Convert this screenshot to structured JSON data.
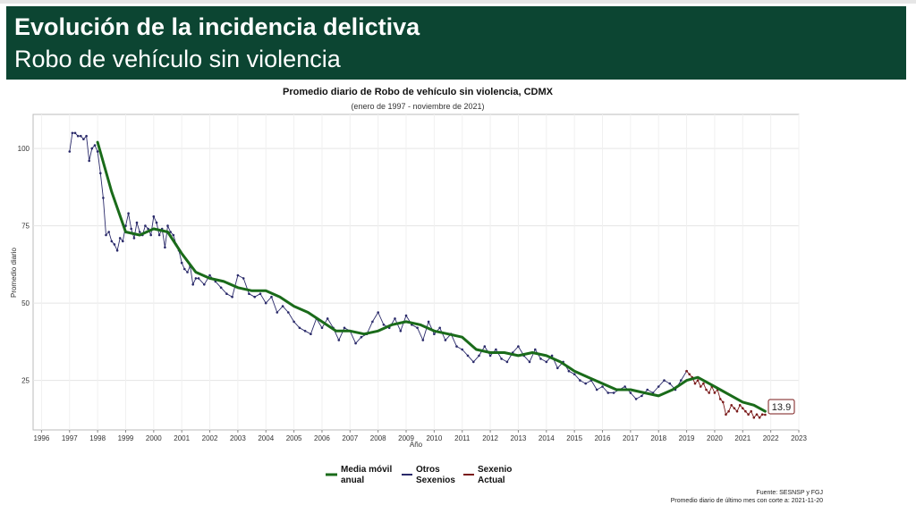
{
  "header": {
    "title": "Evolución de la incidencia delictiva",
    "subtitle": "Robo de vehículo sin violencia"
  },
  "chart_data": {
    "type": "line",
    "title": "Promedio diario de Robo de vehículo sin violencia, CDMX",
    "subtitle": "(enero de 1997 - noviembre de 2021)",
    "xlabel": "Año",
    "ylabel": "Promedio diario",
    "xlim": [
      1995.7,
      2023.0
    ],
    "ylim": [
      9,
      111
    ],
    "x_ticks": [
      1996,
      1997,
      1998,
      1999,
      2000,
      2001,
      2002,
      2003,
      2004,
      2005,
      2006,
      2007,
      2008,
      2009,
      2010,
      2011,
      2012,
      2013,
      2014,
      2015,
      2016,
      2017,
      2018,
      2019,
      2020,
      2021,
      2022,
      2023
    ],
    "x_tick_labels": [
      "1996",
      "1997",
      "1998",
      "1999",
      "2000",
      "2001",
      "2002",
      "2003",
      "2004",
      "2005",
      "2006",
      "2007",
      "2008",
      "2009",
      "2010",
      "2011",
      "2012",
      "2013",
      "2014",
      "2015",
      "2016",
      "2017",
      "2018",
      "2019",
      "2020",
      "2021",
      "2022",
      "2023"
    ],
    "y_ticks": [
      25,
      50,
      75,
      100
    ],
    "y_tick_labels": [
      "25",
      "50",
      "75",
      "100"
    ],
    "grid": true,
    "legend_position": "bottom",
    "legend": [
      {
        "label": "Media móvil anual",
        "color": "#1a6b1a"
      },
      {
        "label": "Otros Sexenios",
        "color": "#2a2a6a"
      },
      {
        "label": "Sexenio Actual",
        "color": "#7a1a1a"
      }
    ],
    "last_value_label": "13.9",
    "series": [
      {
        "name": "Media móvil anual",
        "color": "#1a6b1a",
        "points": [
          [
            1998.0,
            102
          ],
          [
            1998.5,
            86
          ],
          [
            1999.0,
            73
          ],
          [
            1999.5,
            72
          ],
          [
            2000.0,
            74
          ],
          [
            2000.5,
            73
          ],
          [
            2001.0,
            66
          ],
          [
            2001.5,
            60
          ],
          [
            2002.0,
            58
          ],
          [
            2002.5,
            57
          ],
          [
            2003.0,
            55
          ],
          [
            2003.5,
            54
          ],
          [
            2004.0,
            54
          ],
          [
            2004.5,
            52
          ],
          [
            2005.0,
            49
          ],
          [
            2005.5,
            47
          ],
          [
            2006.0,
            44
          ],
          [
            2006.5,
            41
          ],
          [
            2007.0,
            41
          ],
          [
            2007.5,
            40
          ],
          [
            2008.0,
            41
          ],
          [
            2008.5,
            43
          ],
          [
            2009.0,
            44
          ],
          [
            2009.5,
            43
          ],
          [
            2010.0,
            41
          ],
          [
            2010.5,
            40
          ],
          [
            2011.0,
            39
          ],
          [
            2011.5,
            35
          ],
          [
            2012.0,
            34
          ],
          [
            2012.5,
            34
          ],
          [
            2013.0,
            33
          ],
          [
            2013.5,
            34
          ],
          [
            2014.0,
            33
          ],
          [
            2014.5,
            31
          ],
          [
            2015.0,
            28
          ],
          [
            2015.5,
            26
          ],
          [
            2016.0,
            24
          ],
          [
            2016.5,
            22
          ],
          [
            2017.0,
            22
          ],
          [
            2017.5,
            21
          ],
          [
            2018.0,
            20
          ],
          [
            2018.5,
            22
          ],
          [
            2019.0,
            25
          ],
          [
            2019.4,
            26
          ],
          [
            2019.8,
            24
          ],
          [
            2020.2,
            22
          ],
          [
            2020.6,
            20
          ],
          [
            2021.0,
            18
          ],
          [
            2021.4,
            17
          ],
          [
            2021.8,
            15
          ]
        ]
      },
      {
        "name": "Otros Sexenios",
        "color": "#2a2a6a",
        "points": [
          [
            1997.0,
            99
          ],
          [
            1997.1,
            105
          ],
          [
            1997.2,
            105
          ],
          [
            1997.3,
            104
          ],
          [
            1997.4,
            104
          ],
          [
            1997.5,
            103
          ],
          [
            1997.6,
            104
          ],
          [
            1997.7,
            96
          ],
          [
            1997.8,
            100
          ],
          [
            1997.9,
            101
          ],
          [
            1998.0,
            99
          ],
          [
            1998.1,
            92
          ],
          [
            1998.2,
            84
          ],
          [
            1998.3,
            72
          ],
          [
            1998.4,
            73
          ],
          [
            1998.5,
            70
          ],
          [
            1998.6,
            69
          ],
          [
            1998.7,
            67
          ],
          [
            1998.8,
            71
          ],
          [
            1998.9,
            70
          ],
          [
            1999.0,
            75
          ],
          [
            1999.1,
            79
          ],
          [
            1999.2,
            74
          ],
          [
            1999.3,
            71
          ],
          [
            1999.4,
            76
          ],
          [
            1999.5,
            73
          ],
          [
            1999.6,
            72
          ],
          [
            1999.7,
            75
          ],
          [
            1999.8,
            74
          ],
          [
            1999.9,
            72
          ],
          [
            2000.0,
            78
          ],
          [
            2000.1,
            76
          ],
          [
            2000.2,
            72
          ],
          [
            2000.3,
            74
          ],
          [
            2000.4,
            68
          ],
          [
            2000.5,
            75
          ],
          [
            2000.6,
            73
          ],
          [
            2000.7,
            72
          ],
          [
            2000.8,
            69
          ],
          [
            2000.9,
            67
          ],
          [
            2001.0,
            63
          ],
          [
            2001.1,
            61
          ],
          [
            2001.2,
            60
          ],
          [
            2001.3,
            62
          ],
          [
            2001.4,
            56
          ],
          [
            2001.5,
            58
          ],
          [
            2001.6,
            58
          ],
          [
            2001.8,
            56
          ],
          [
            2002.0,
            59
          ],
          [
            2002.2,
            57
          ],
          [
            2002.4,
            55
          ],
          [
            2002.6,
            53
          ],
          [
            2002.8,
            52
          ],
          [
            2003.0,
            59
          ],
          [
            2003.2,
            58
          ],
          [
            2003.4,
            53
          ],
          [
            2003.6,
            52
          ],
          [
            2003.8,
            53
          ],
          [
            2004.0,
            50
          ],
          [
            2004.2,
            52
          ],
          [
            2004.4,
            47
          ],
          [
            2004.6,
            49
          ],
          [
            2004.8,
            47
          ],
          [
            2005.0,
            44
          ],
          [
            2005.2,
            42
          ],
          [
            2005.4,
            41
          ],
          [
            2005.6,
            40
          ],
          [
            2005.8,
            45
          ],
          [
            2006.0,
            42
          ],
          [
            2006.2,
            45
          ],
          [
            2006.4,
            42
          ],
          [
            2006.6,
            38
          ],
          [
            2006.8,
            42
          ],
          [
            2007.0,
            41
          ],
          [
            2007.2,
            37
          ],
          [
            2007.4,
            39
          ],
          [
            2007.6,
            40
          ],
          [
            2007.8,
            44
          ],
          [
            2008.0,
            47
          ],
          [
            2008.2,
            43
          ],
          [
            2008.4,
            42
          ],
          [
            2008.6,
            45
          ],
          [
            2008.8,
            41
          ],
          [
            2009.0,
            46
          ],
          [
            2009.2,
            43
          ],
          [
            2009.4,
            42
          ],
          [
            2009.6,
            38
          ],
          [
            2009.8,
            44
          ],
          [
            2010.0,
            40
          ],
          [
            2010.2,
            42
          ],
          [
            2010.4,
            38
          ],
          [
            2010.6,
            40
          ],
          [
            2010.8,
            36
          ],
          [
            2011.0,
            35
          ],
          [
            2011.2,
            33
          ],
          [
            2011.4,
            31
          ],
          [
            2011.6,
            33
          ],
          [
            2011.8,
            36
          ],
          [
            2012.0,
            33
          ],
          [
            2012.2,
            35
          ],
          [
            2012.4,
            32
          ],
          [
            2012.6,
            31
          ],
          [
            2012.8,
            34
          ],
          [
            2013.0,
            36
          ],
          [
            2013.2,
            33
          ],
          [
            2013.4,
            31
          ],
          [
            2013.6,
            35
          ],
          [
            2013.8,
            32
          ],
          [
            2014.0,
            31
          ],
          [
            2014.2,
            33
          ],
          [
            2014.4,
            29
          ],
          [
            2014.6,
            31
          ],
          [
            2014.8,
            28
          ],
          [
            2015.0,
            27
          ],
          [
            2015.2,
            25
          ],
          [
            2015.4,
            24
          ],
          [
            2015.6,
            25
          ],
          [
            2015.8,
            22
          ],
          [
            2016.0,
            23
          ],
          [
            2016.2,
            21
          ],
          [
            2016.4,
            21
          ],
          [
            2016.6,
            22
          ],
          [
            2016.8,
            23
          ],
          [
            2017.0,
            21
          ],
          [
            2017.2,
            19
          ],
          [
            2017.4,
            20
          ],
          [
            2017.6,
            22
          ],
          [
            2017.8,
            21
          ],
          [
            2018.0,
            23
          ],
          [
            2018.2,
            25
          ],
          [
            2018.4,
            24
          ],
          [
            2018.6,
            22
          ],
          [
            2018.8,
            25
          ],
          [
            2019.0,
            28
          ]
        ]
      },
      {
        "name": "Sexenio Actual",
        "color": "#7a1a1a",
        "points": [
          [
            2019.0,
            28
          ],
          [
            2019.1,
            27
          ],
          [
            2019.2,
            26
          ],
          [
            2019.3,
            24
          ],
          [
            2019.4,
            25
          ],
          [
            2019.5,
            23
          ],
          [
            2019.6,
            24
          ],
          [
            2019.7,
            22
          ],
          [
            2019.8,
            21
          ],
          [
            2019.9,
            23
          ],
          [
            2020.0,
            21
          ],
          [
            2020.1,
            22
          ],
          [
            2020.2,
            19
          ],
          [
            2020.3,
            18
          ],
          [
            2020.4,
            14
          ],
          [
            2020.5,
            15
          ],
          [
            2020.6,
            17
          ],
          [
            2020.7,
            16
          ],
          [
            2020.8,
            15
          ],
          [
            2020.9,
            17
          ],
          [
            2021.0,
            16
          ],
          [
            2021.1,
            15
          ],
          [
            2021.2,
            14
          ],
          [
            2021.3,
            15
          ],
          [
            2021.4,
            13
          ],
          [
            2021.5,
            14
          ],
          [
            2021.6,
            13
          ],
          [
            2021.7,
            14
          ],
          [
            2021.8,
            13.9
          ]
        ]
      }
    ]
  },
  "footer": {
    "source": "Fuente: SESNSP y FGJ",
    "note": "Promedio diario de último mes con corte a: 2021-11-20"
  }
}
